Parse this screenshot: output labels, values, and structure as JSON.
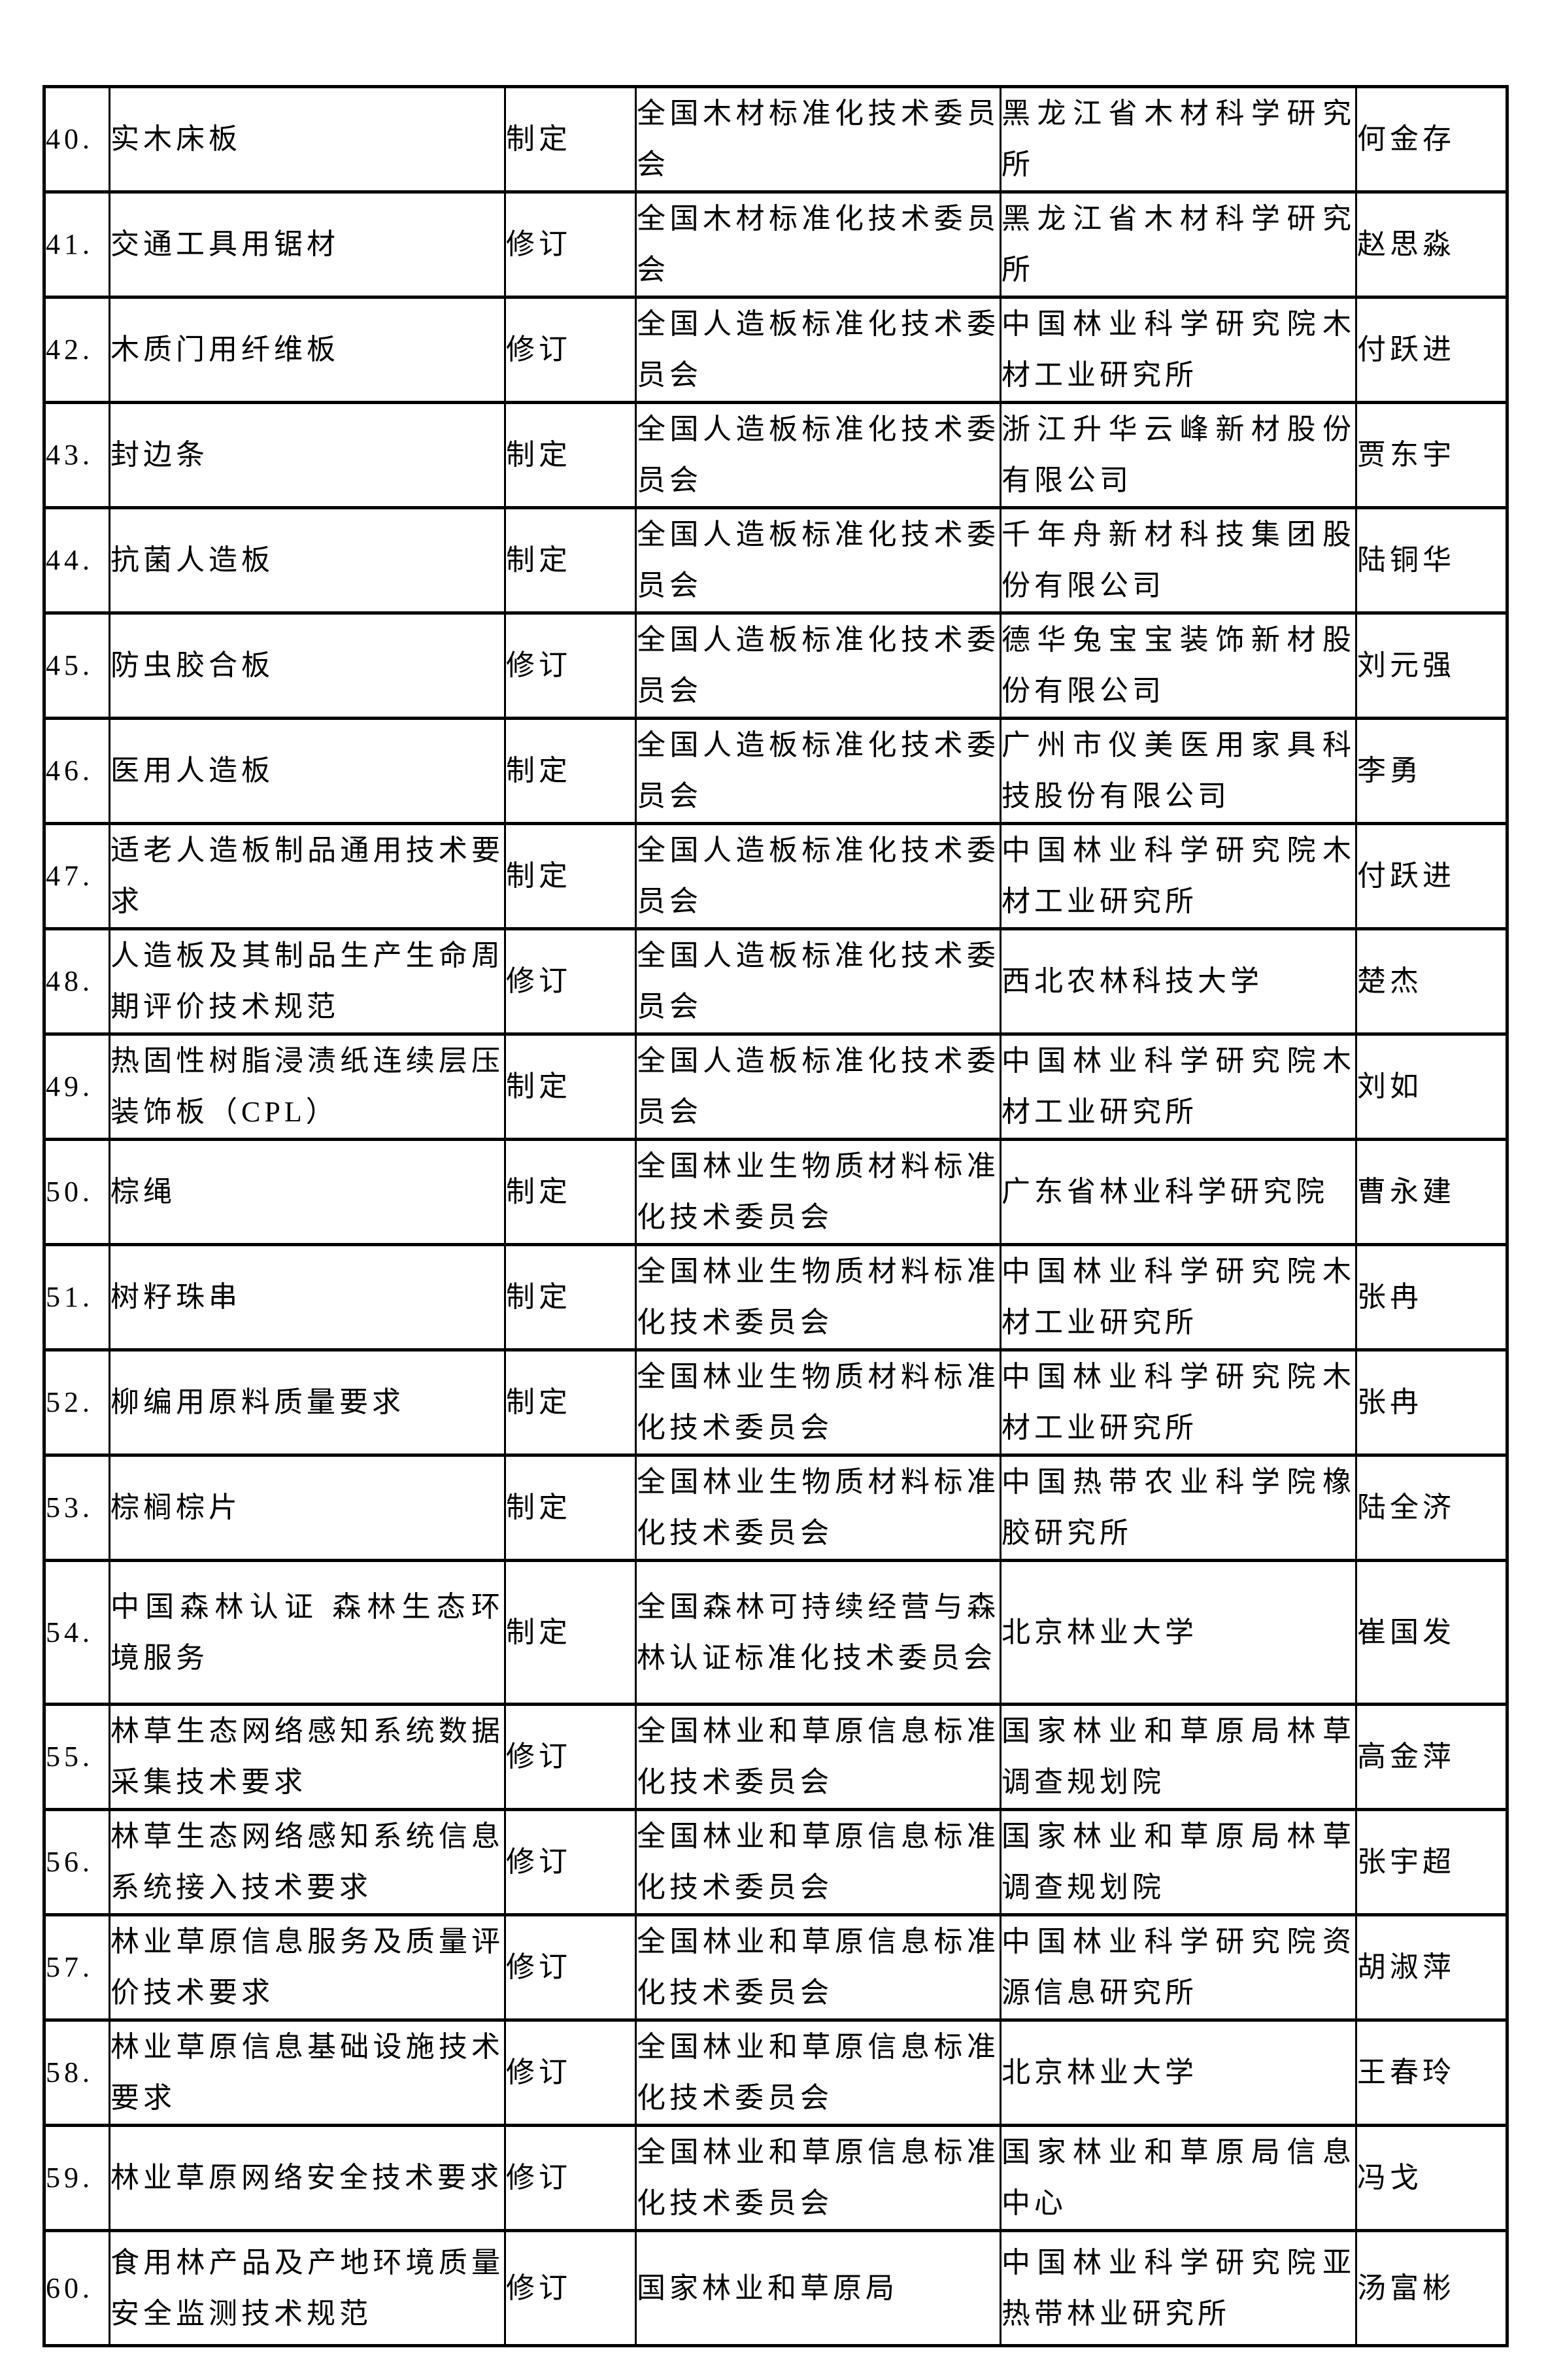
{
  "colors": {
    "page_background": "#ffffff",
    "table_border": "#000000",
    "text": "#000000"
  },
  "table": {
    "rows": [
      {
        "num": "40.",
        "name": "实木床板",
        "type": "制定",
        "committee": "全国木材标准化技术委员会",
        "org": "黑龙江省木材科学研究所",
        "person": "何金存"
      },
      {
        "num": "41.",
        "name": "交通工具用锯材",
        "type": "修订",
        "committee": "全国木材标准化技术委员会",
        "org": "黑龙江省木材科学研究所",
        "person": "赵思淼"
      },
      {
        "num": "42.",
        "name": "木质门用纤维板",
        "type": "修订",
        "committee": "全国人造板标准化技术委员会",
        "org": "中国林业科学研究院木材工业研究所",
        "person": "付跃进"
      },
      {
        "num": "43.",
        "name": "封边条",
        "type": "制定",
        "committee": "全国人造板标准化技术委员会",
        "org": "浙江升华云峰新材股份有限公司",
        "person": "贾东宇"
      },
      {
        "num": "44.",
        "name": "抗菌人造板",
        "type": "制定",
        "committee": "全国人造板标准化技术委员会",
        "org": "千年舟新材科技集团股份有限公司",
        "person": "陆铜华"
      },
      {
        "num": "45.",
        "name": "防虫胶合板",
        "type": "修订",
        "committee": "全国人造板标准化技术委员会",
        "org": "德华兔宝宝装饰新材股份有限公司",
        "person": "刘元强"
      },
      {
        "num": "46.",
        "name": "医用人造板",
        "type": "制定",
        "committee": "全国人造板标准化技术委员会",
        "org": "广州市仪美医用家具科技股份有限公司",
        "person": "李勇"
      },
      {
        "num": "47.",
        "name": "适老人造板制品通用技术要求",
        "type": "制定",
        "committee": "全国人造板标准化技术委员会",
        "org": "中国林业科学研究院木材工业研究所",
        "person": "付跃进"
      },
      {
        "num": "48.",
        "name": "人造板及其制品生产生命周期评价技术规范",
        "type": "修订",
        "committee": "全国人造板标准化技术委员会",
        "org": "西北农林科技大学",
        "person": "楚杰"
      },
      {
        "num": "49.",
        "name": "热固性树脂浸渍纸连续层压装饰板（CPL）",
        "type": "制定",
        "committee": "全国人造板标准化技术委员会",
        "org": "中国林业科学研究院木材工业研究所",
        "person": "刘如"
      },
      {
        "num": "50.",
        "name": "棕绳",
        "type": "制定",
        "committee": "全国林业生物质材料标准化技术委员会",
        "org": "广东省林业科学研究院",
        "person": "曹永建"
      },
      {
        "num": "51.",
        "name": "树籽珠串",
        "type": "制定",
        "committee": "全国林业生物质材料标准化技术委员会",
        "org": "中国林业科学研究院木材工业研究所",
        "person": "张冉"
      },
      {
        "num": "52.",
        "name": "柳编用原料质量要求",
        "type": "制定",
        "committee": "全国林业生物质材料标准化技术委员会",
        "org": "中国林业科学研究院木材工业研究所",
        "person": "张冉"
      },
      {
        "num": "53.",
        "name": "棕榈棕片",
        "type": "制定",
        "committee": "全国林业生物质材料标准化技术委员会",
        "org": "中国热带农业科学院橡胶研究所",
        "person": "陆全济"
      },
      {
        "num": "54.",
        "name": "中国森林认证 森林生态环境服务",
        "type": "制定",
        "committee": "全国森林可持续经营与森林认证标准化技术委员会",
        "org": "北京林业大学",
        "person": "崔国发"
      },
      {
        "num": "55.",
        "name": "林草生态网络感知系统数据采集技术要求",
        "type": "修订",
        "committee": "全国林业和草原信息标准化技术委员会",
        "org": "国家林业和草原局林草调查规划院",
        "person": "高金萍"
      },
      {
        "num": "56.",
        "name": "林草生态网络感知系统信息系统接入技术要求",
        "type": "修订",
        "committee": "全国林业和草原信息标准化技术委员会",
        "org": "国家林业和草原局林草调查规划院",
        "person": "张宇超"
      },
      {
        "num": "57.",
        "name": "林业草原信息服务及质量评价技术要求",
        "type": "修订",
        "committee": "全国林业和草原信息标准化技术委员会",
        "org": "中国林业科学研究院资源信息研究所",
        "person": "胡淑萍"
      },
      {
        "num": "58.",
        "name": "林业草原信息基础设施技术要求",
        "type": "修订",
        "committee": "全国林业和草原信息标准化技术委员会",
        "org": "北京林业大学",
        "person": "王春玲"
      },
      {
        "num": "59.",
        "name": "林业草原网络安全技术要求",
        "type": "修订",
        "committee": "全国林业和草原信息标准化技术委员会",
        "org": "国家林业和草原局信息中心",
        "person": "冯戈"
      },
      {
        "num": "60.",
        "name": "食用林产品及产地环境质量安全监测技术规范",
        "type": "修订",
        "committee": "国家林业和草原局",
        "org": "中国林业科学研究院亚热带林业研究所",
        "person": "汤富彬"
      }
    ]
  }
}
